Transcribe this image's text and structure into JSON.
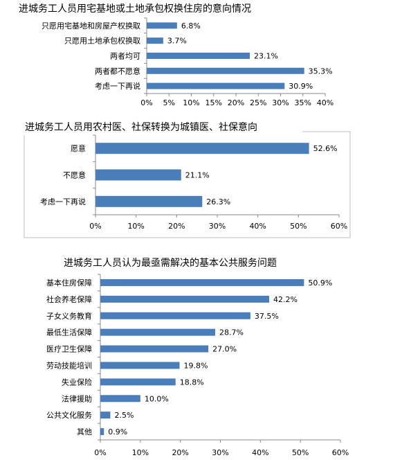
{
  "charts": [
    {
      "title": "进城务工人员用宅基地或土地承包权换住房的意向情况",
      "type": "bar",
      "orientation": "horizontal",
      "categories": [
        "只愿用宅基地和房屋产权换取",
        "只愿用土地承包权换取",
        "两者均可",
        "两者都不愿意",
        "考虑一下再说"
      ],
      "values": [
        6.8,
        3.7,
        23.1,
        35.3,
        30.9
      ],
      "value_labels": [
        "6.8%",
        "3.7%",
        "23.1%",
        "35.3%",
        "30.9%"
      ],
      "xlim": [
        0,
        40
      ],
      "ticks": [
        "0%",
        "5%",
        "10%",
        "15%",
        "20%",
        "25%",
        "30%",
        "35%",
        "40%"
      ],
      "color": "#4a7ebb"
    },
    {
      "title": "进城务工人员用农村医、社保转换为城镇医、社保意向",
      "type": "bar",
      "orientation": "horizontal",
      "categories": [
        "愿意",
        "不愿意",
        "考虑一下再说"
      ],
      "values": [
        52.6,
        21.1,
        26.3
      ],
      "value_labels": [
        "52.6%",
        "21.1%",
        "26.3%"
      ],
      "xlim": [
        0,
        60
      ],
      "ticks": [
        "0%",
        "10%",
        "20%",
        "30%",
        "40%",
        "50%",
        "60%"
      ],
      "color": "#4a7ebb"
    },
    {
      "title": "进城务工人员认为最亟需解决的基本公共服务问题",
      "type": "bar",
      "orientation": "horizontal",
      "categories": [
        "基本住房保障",
        "社会养老保障",
        "子女义务教育",
        "最低生活保障",
        "医疗卫生保障",
        "劳动技能培训",
        "失业保险",
        "法律援助",
        "公共文化服务",
        "其他"
      ],
      "values": [
        50.9,
        42.2,
        37.5,
        28.7,
        27.0,
        19.8,
        18.8,
        10.0,
        2.5,
        0.9
      ],
      "value_labels": [
        "50.9%",
        "42.2%",
        "37.5%",
        "28.7%",
        "27.0%",
        "19.8%",
        "18.8%",
        "10.0%",
        "2.5%",
        "0.9%"
      ],
      "xlim": [
        0,
        60
      ],
      "ticks": [
        "0%",
        "10%",
        "20%",
        "30%",
        "40%",
        "50%",
        "60%"
      ],
      "color": "#4a7ebb"
    }
  ]
}
